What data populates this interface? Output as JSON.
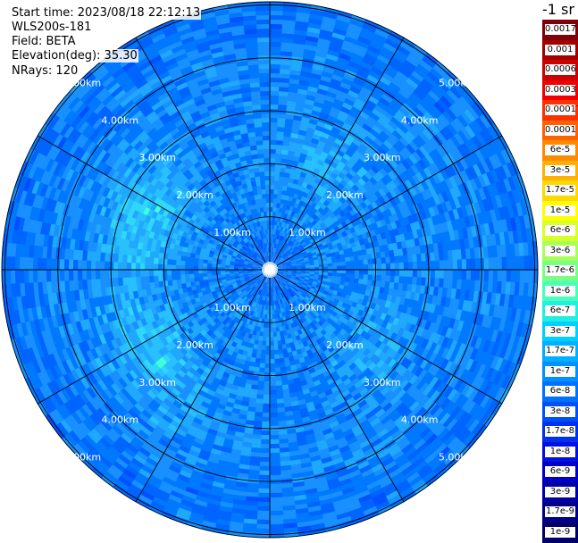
{
  "info": {
    "start_time": "Start time: 2023/08/18 22:12:13",
    "device": "WLS200s-181",
    "field": "Field: BETA",
    "elevation": "Elevation(deg): 35.30",
    "nrays": "NRays: 120"
  },
  "colorbar": {
    "title": "-1 sr",
    "labels": [
      "0.0017",
      "0.001",
      "0.0006",
      "0.0003",
      "0.00017",
      "0.0001",
      "6e-5",
      "3e-5",
      "1.7e-5",
      "1e-5",
      "6e-6",
      "3e-6",
      "1.7e-6",
      "1e-6",
      "6e-7",
      "3e-7",
      "1.7e-7",
      "1e-7",
      "6e-8",
      "3e-8",
      "1.7e-8",
      "1e-8",
      "6e-9",
      "3e-9",
      "1.7e-9",
      "1e-9"
    ],
    "colors": [
      "#80000a",
      "#a40000",
      "#cc0000",
      "#f00000",
      "#ff3000",
      "#ff6000",
      "#ff8a00",
      "#ffb000",
      "#ffd800",
      "#ffff00",
      "#d8ff28",
      "#a8ff58",
      "#78ff88",
      "#48ffb8",
      "#20f0e0",
      "#00d0ff",
      "#00b0ff",
      "#0090ff",
      "#0070ff",
      "#0050f8",
      "#0030f0",
      "#0010e0",
      "#0000c8",
      "#0000a8",
      "#000088",
      "#000068"
    ]
  },
  "chart_data": {
    "type": "heatmap",
    "projection": "polar-ppi",
    "n_rays": 120,
    "range_rings": [
      {
        "label": "1.00km"
      },
      {
        "label": "2.00km"
      },
      {
        "label": "3.00km"
      },
      {
        "label": "4.00km"
      },
      {
        "label": "5.00km"
      }
    ],
    "dominant_value_range": [
      "1e-8",
      "3e-7"
    ],
    "elevated_regions": "speckled light-cyan patches around the 2.00km-3.00km rings toward the northwest and southwest",
    "colors": {
      "low": "#0050ff",
      "mid": "#1890ff",
      "high": "#40ffd8"
    }
  }
}
